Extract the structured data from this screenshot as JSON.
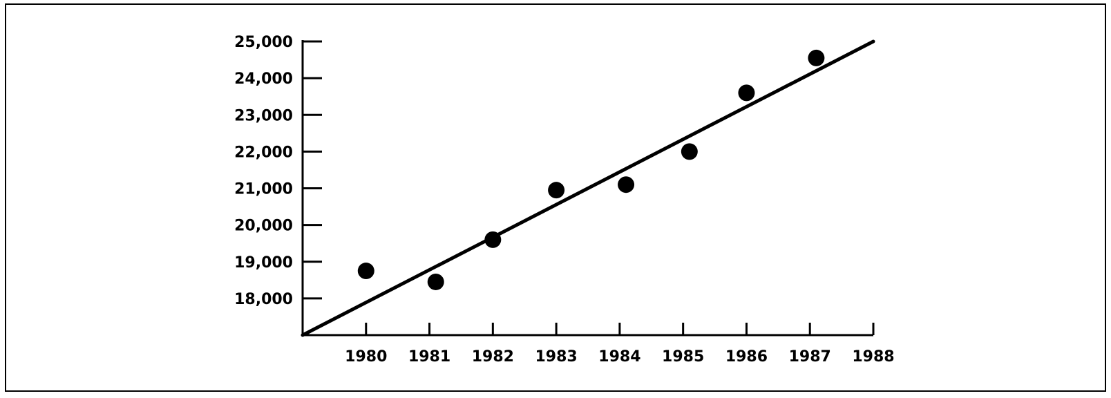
{
  "chart_data": {
    "type": "scatter",
    "title": "",
    "xlabel": "",
    "ylabel": "",
    "xlim": [
      1979,
      1988
    ],
    "ylim": [
      17000,
      25000
    ],
    "x_ticks": [
      1980,
      1981,
      1982,
      1983,
      1984,
      1985,
      1986,
      1987,
      1988
    ],
    "x_tick_labels": [
      "1980",
      "1981",
      "1982",
      "1983",
      "1984",
      "1985",
      "1986",
      "1987",
      "1988"
    ],
    "y_ticks": [
      18000,
      19000,
      20000,
      21000,
      22000,
      23000,
      24000,
      25000
    ],
    "y_tick_labels": [
      "18,000",
      "19,000",
      "20,000",
      "21,000",
      "22,000",
      "23,000",
      "24,000",
      "25,000"
    ],
    "grid": false,
    "legend": "none",
    "points": {
      "x": [
        1980,
        1981.1,
        1982,
        1983,
        1984.1,
        1985.1,
        1986,
        1987.1
      ],
      "y": [
        18750,
        18450,
        19600,
        20950,
        21100,
        22000,
        23600,
        24550
      ]
    },
    "trendline": {
      "x": [
        1979,
        1988
      ],
      "y": [
        17000,
        25000
      ]
    },
    "colors": {
      "marks": "#000000",
      "background": "#ffffff"
    }
  }
}
